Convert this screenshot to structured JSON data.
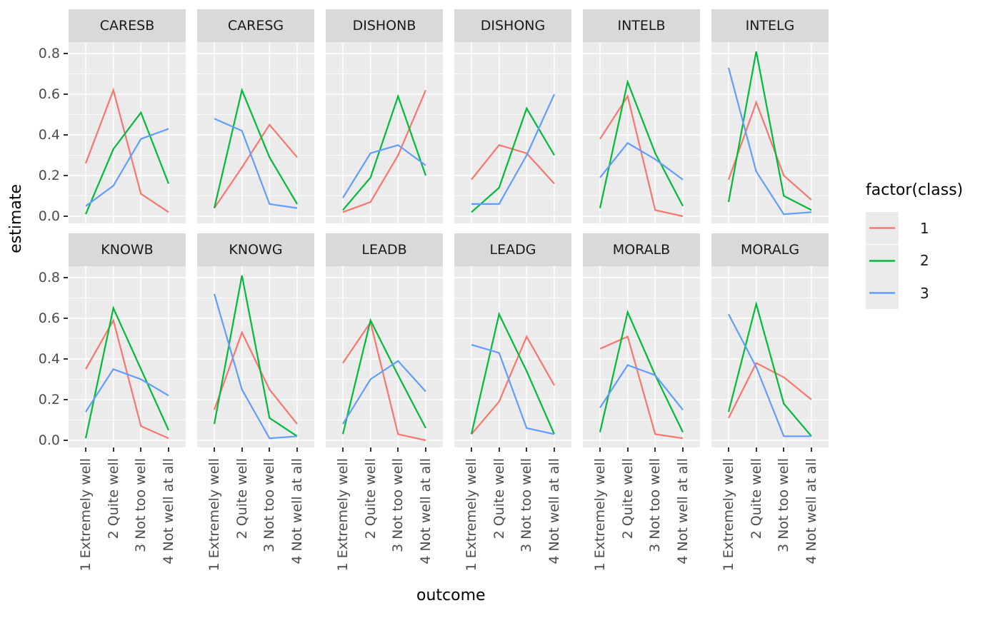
{
  "chart_data": {
    "type": "line",
    "faceted": true,
    "xlabel": "outcome",
    "ylabel": "estimate",
    "categories": [
      "1 Extremely well",
      "2 Quite well",
      "3 Not too well",
      "4 Not well at all"
    ],
    "y_ticks": [
      "0.0",
      "0.2",
      "0.4",
      "0.6",
      "0.8"
    ],
    "ylim": [
      -0.04,
      0.85
    ],
    "grid": true,
    "legend": {
      "title": "factor(class)",
      "position": "right",
      "entries": [
        {
          "label": "1",
          "color": "#F8766D"
        },
        {
          "label": "2",
          "color": "#00BA38"
        },
        {
          "label": "3",
          "color": "#619CFF"
        }
      ]
    },
    "facets": [
      {
        "label": "CARESB",
        "series": [
          {
            "name": "1",
            "values": [
              0.26,
              0.62,
              0.11,
              0.02
            ]
          },
          {
            "name": "2",
            "values": [
              0.01,
              0.33,
              0.51,
              0.16
            ]
          },
          {
            "name": "3",
            "values": [
              0.05,
              0.15,
              0.38,
              0.43
            ]
          }
        ]
      },
      {
        "label": "CARESG",
        "series": [
          {
            "name": "1",
            "values": [
              0.04,
              0.24,
              0.45,
              0.29
            ]
          },
          {
            "name": "2",
            "values": [
              0.04,
              0.62,
              0.29,
              0.06
            ]
          },
          {
            "name": "3",
            "values": [
              0.48,
              0.42,
              0.06,
              0.04
            ]
          }
        ]
      },
      {
        "label": "DISHONB",
        "series": [
          {
            "name": "1",
            "values": [
              0.02,
              0.07,
              0.3,
              0.62
            ]
          },
          {
            "name": "2",
            "values": [
              0.03,
              0.19,
              0.59,
              0.2
            ]
          },
          {
            "name": "3",
            "values": [
              0.09,
              0.31,
              0.35,
              0.25
            ]
          }
        ]
      },
      {
        "label": "DISHONG",
        "series": [
          {
            "name": "1",
            "values": [
              0.18,
              0.35,
              0.31,
              0.16
            ]
          },
          {
            "name": "2",
            "values": [
              0.02,
              0.14,
              0.53,
              0.3
            ]
          },
          {
            "name": "3",
            "values": [
              0.06,
              0.06,
              0.3,
              0.6
            ]
          }
        ]
      },
      {
        "label": "INTELB",
        "series": [
          {
            "name": "1",
            "values": [
              0.38,
              0.59,
              0.03,
              0.0
            ]
          },
          {
            "name": "2",
            "values": [
              0.04,
              0.66,
              0.31,
              0.05
            ]
          },
          {
            "name": "3",
            "values": [
              0.19,
              0.36,
              0.28,
              0.18
            ]
          }
        ]
      },
      {
        "label": "INTELG",
        "series": [
          {
            "name": "1",
            "values": [
              0.18,
              0.56,
              0.2,
              0.08
            ]
          },
          {
            "name": "2",
            "values": [
              0.07,
              0.81,
              0.1,
              0.03
            ]
          },
          {
            "name": "3",
            "values": [
              0.73,
              0.22,
              0.01,
              0.02
            ]
          }
        ]
      },
      {
        "label": "KNOWB",
        "series": [
          {
            "name": "1",
            "values": [
              0.35,
              0.59,
              0.07,
              0.01
            ]
          },
          {
            "name": "2",
            "values": [
              0.01,
              0.65,
              0.35,
              0.05
            ]
          },
          {
            "name": "3",
            "values": [
              0.14,
              0.35,
              0.3,
              0.22
            ]
          }
        ]
      },
      {
        "label": "KNOWG",
        "series": [
          {
            "name": "1",
            "values": [
              0.15,
              0.53,
              0.25,
              0.08
            ]
          },
          {
            "name": "2",
            "values": [
              0.08,
              0.81,
              0.11,
              0.02
            ]
          },
          {
            "name": "3",
            "values": [
              0.72,
              0.25,
              0.01,
              0.02
            ]
          }
        ]
      },
      {
        "label": "LEADB",
        "series": [
          {
            "name": "1",
            "values": [
              0.38,
              0.58,
              0.03,
              0.0
            ]
          },
          {
            "name": "2",
            "values": [
              0.03,
              0.59,
              0.32,
              0.06
            ]
          },
          {
            "name": "3",
            "values": [
              0.08,
              0.3,
              0.39,
              0.24
            ]
          }
        ]
      },
      {
        "label": "LEADG",
        "series": [
          {
            "name": "1",
            "values": [
              0.03,
              0.19,
              0.51,
              0.27
            ]
          },
          {
            "name": "2",
            "values": [
              0.03,
              0.62,
              0.34,
              0.03
            ]
          },
          {
            "name": "3",
            "values": [
              0.47,
              0.43,
              0.06,
              0.03
            ]
          }
        ]
      },
      {
        "label": "MORALB",
        "series": [
          {
            "name": "1",
            "values": [
              0.45,
              0.51,
              0.03,
              0.01
            ]
          },
          {
            "name": "2",
            "values": [
              0.04,
              0.63,
              0.32,
              0.04
            ]
          },
          {
            "name": "3",
            "values": [
              0.16,
              0.37,
              0.32,
              0.15
            ]
          }
        ]
      },
      {
        "label": "MORALG",
        "series": [
          {
            "name": "1",
            "values": [
              0.11,
              0.38,
              0.31,
              0.2
            ]
          },
          {
            "name": "2",
            "values": [
              0.14,
              0.67,
              0.18,
              0.02
            ]
          },
          {
            "name": "3",
            "values": [
              0.62,
              0.36,
              0.02,
              0.02
            ]
          }
        ]
      }
    ]
  },
  "colors": {
    "panel_background": "#EBEBEB",
    "strip_background": "#D9D9D9",
    "grid": "#FFFFFF",
    "tick_text": "#4D4D4D",
    "axis_text": "#000000"
  }
}
